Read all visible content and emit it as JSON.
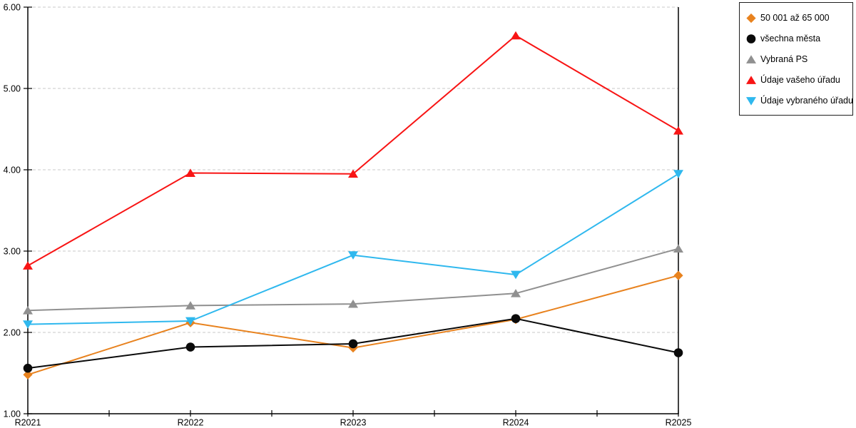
{
  "chart_data": {
    "type": "line",
    "title": "",
    "xlabel": "",
    "ylabel": "",
    "categories": [
      "R2021",
      "R2022",
      "R2023",
      "R2024",
      "R2025"
    ],
    "series": [
      {
        "name": "50 001 až 65 000",
        "color": "#E8821E",
        "marker": "diamond",
        "values": [
          1.48,
          2.12,
          1.81,
          2.16,
          2.7
        ]
      },
      {
        "name": "všechna města",
        "color": "#0a0a0a",
        "marker": "circle",
        "values": [
          1.56,
          1.82,
          1.86,
          2.17,
          1.75
        ]
      },
      {
        "name": "Vybraná PS",
        "color": "#909090",
        "marker": "triangle-up",
        "values": [
          2.27,
          2.33,
          2.35,
          2.48,
          3.03
        ]
      },
      {
        "name": "Údaje vašeho úřadu",
        "color": "#F81414",
        "marker": "triangle-up",
        "values": [
          2.82,
          3.96,
          3.95,
          5.65,
          4.48
        ]
      },
      {
        "name": "Údaje vybraného úřadu",
        "color": "#2FB8EE",
        "marker": "triangle-down",
        "values": [
          2.1,
          2.14,
          2.95,
          2.71,
          3.95
        ]
      }
    ],
    "y_axis": {
      "min": 1,
      "max": 6,
      "tick_labels": [
        "1.00",
        "2.00",
        "3.00",
        "4.00",
        "5.00",
        "6.00"
      ]
    },
    "ylim": [
      1.0,
      6.0
    ],
    "grid": "horizontal-dashed",
    "legend_position": "top-right-outside"
  },
  "colors": {
    "background": "#FFFFFF",
    "grid": "#C8C8C8",
    "axis": "#000000",
    "text": "#000000",
    "legend_border": "#1F1F1F"
  }
}
